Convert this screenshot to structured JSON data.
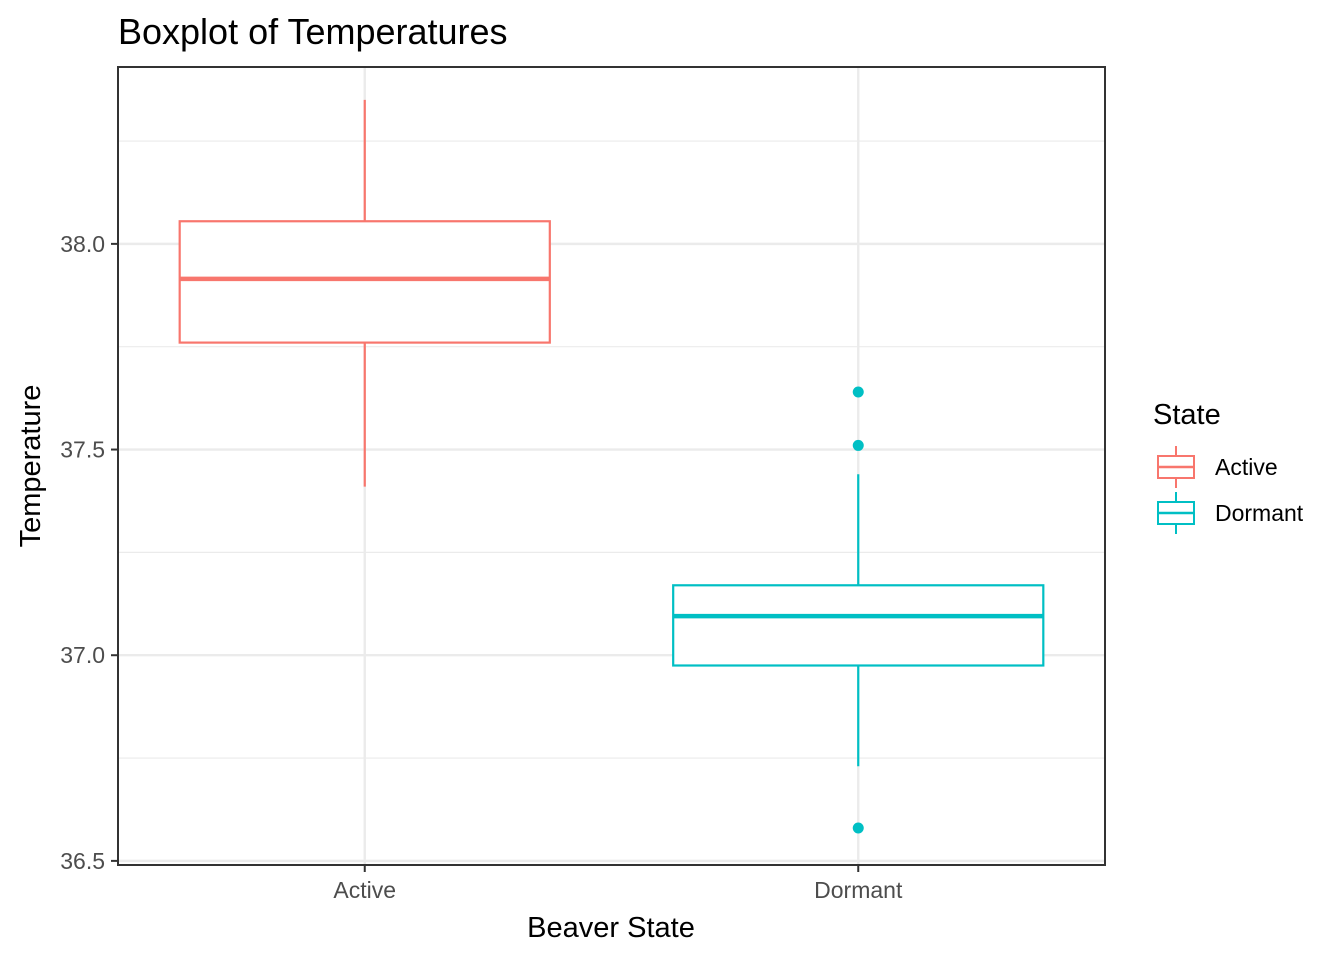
{
  "chart_data": {
    "type": "boxplot",
    "title": "Boxplot of Temperatures",
    "xlabel": "Beaver State",
    "ylabel": "Temperature",
    "categories": [
      "Active",
      "Dormant"
    ],
    "ylim": [
      36.49,
      38.43
    ],
    "yticks": [
      36.5,
      37.0,
      37.5,
      38.0
    ],
    "ytick_labels": [
      "36.5",
      "37.0",
      "37.5",
      "38.0"
    ],
    "grid": true,
    "legend": {
      "title": "State",
      "position": "right",
      "entries": [
        "Active",
        "Dormant"
      ]
    },
    "series": [
      {
        "category": "Active",
        "color": "#F8766D",
        "min": 37.41,
        "q1": 37.76,
        "median": 37.915,
        "q3": 38.055,
        "max": 38.35,
        "outliers": []
      },
      {
        "category": "Dormant",
        "color": "#00BFC4",
        "min": 36.73,
        "q1": 36.975,
        "median": 37.095,
        "q3": 37.17,
        "max": 37.44,
        "outliers": [
          37.64,
          37.51,
          36.58
        ]
      }
    ]
  }
}
